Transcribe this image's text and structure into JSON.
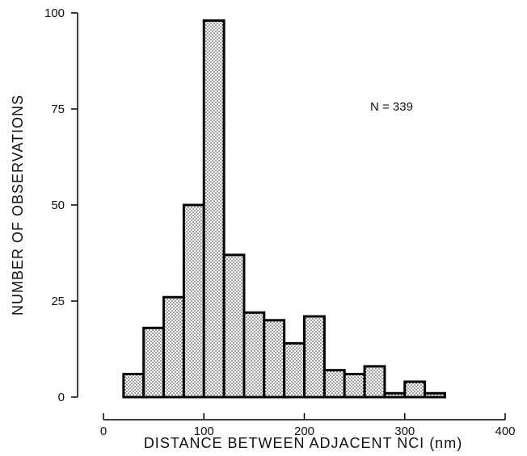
{
  "chart_data": {
    "type": "bar",
    "title": "",
    "xlabel": "DISTANCE BETWEEN ADJACENT NCI (nm)",
    "ylabel": "NUMBER OF OBSERVATIONS",
    "annotation": "N = 339",
    "xlim": [
      0,
      400
    ],
    "ylim": [
      0,
      100
    ],
    "x_ticks": [
      "0",
      "100",
      "200",
      "300",
      "400"
    ],
    "y_ticks": [
      "0",
      "25",
      "50",
      "75",
      "100"
    ],
    "bin_width": 20,
    "bins": [
      {
        "start": 20,
        "end": 40,
        "value": 6
      },
      {
        "start": 40,
        "end": 60,
        "value": 18
      },
      {
        "start": 60,
        "end": 80,
        "value": 26
      },
      {
        "start": 80,
        "end": 100,
        "value": 50
      },
      {
        "start": 100,
        "end": 120,
        "value": 98
      },
      {
        "start": 120,
        "end": 140,
        "value": 37
      },
      {
        "start": 140,
        "end": 160,
        "value": 22
      },
      {
        "start": 160,
        "end": 180,
        "value": 20
      },
      {
        "start": 180,
        "end": 200,
        "value": 14
      },
      {
        "start": 200,
        "end": 220,
        "value": 21
      },
      {
        "start": 220,
        "end": 240,
        "value": 7
      },
      {
        "start": 240,
        "end": 260,
        "value": 6
      },
      {
        "start": 260,
        "end": 280,
        "value": 8
      },
      {
        "start": 280,
        "end": 300,
        "value": 1
      },
      {
        "start": 300,
        "end": 320,
        "value": 4
      },
      {
        "start": 320,
        "end": 340,
        "value": 1
      }
    ],
    "grid": false,
    "bar_pattern": "stippled"
  }
}
